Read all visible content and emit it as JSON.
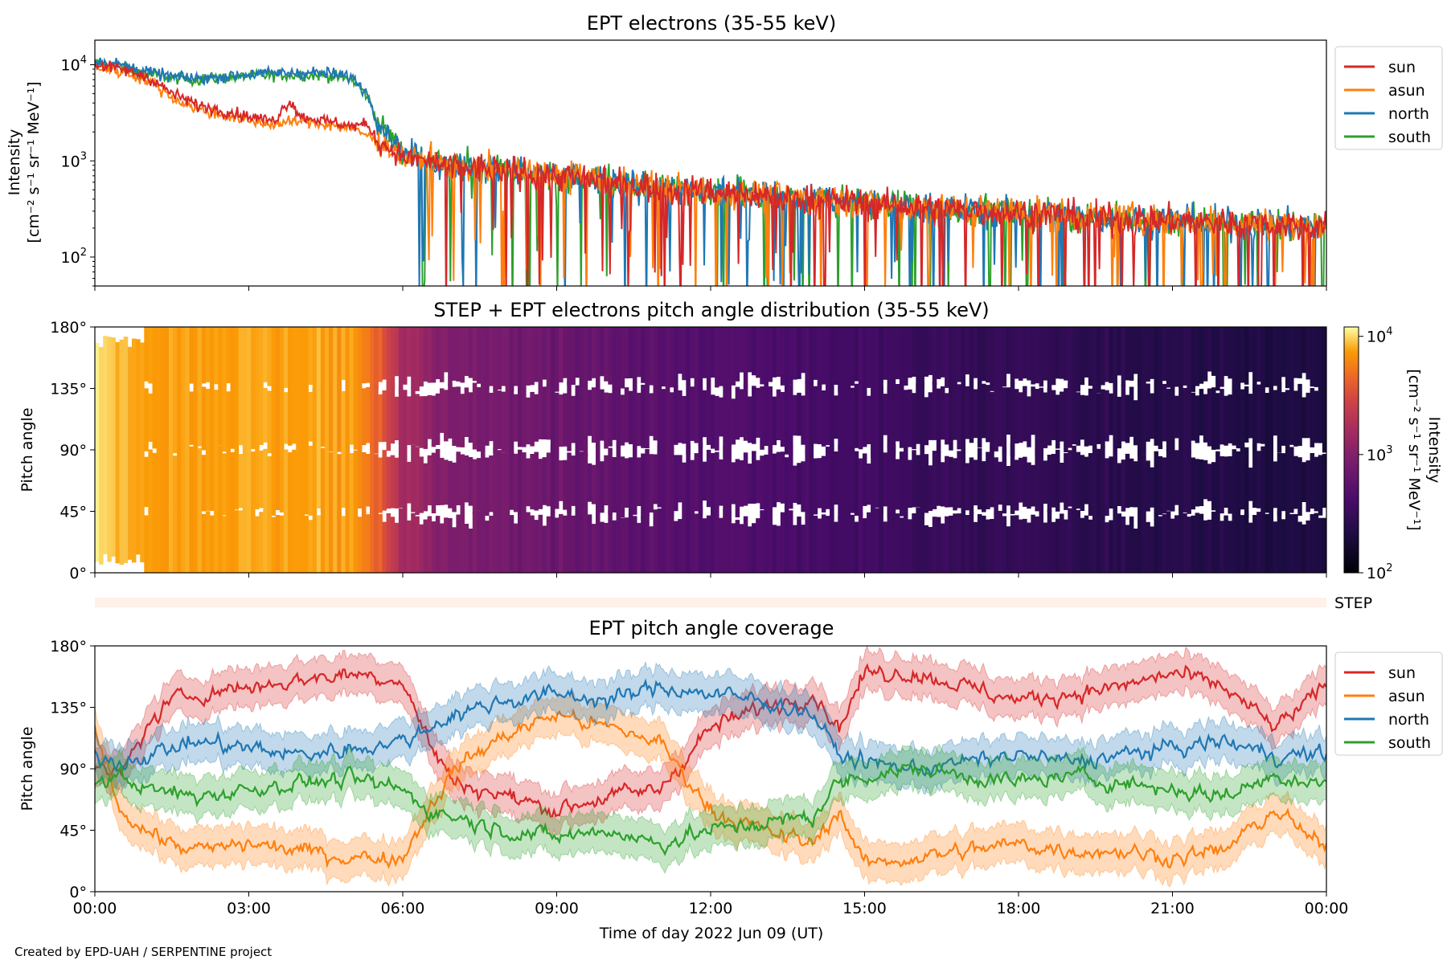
{
  "credit": "Created by EPD-UAH / SERPENTINE project",
  "colors": {
    "sun": "#d62728",
    "asun": "#ff7f0e",
    "north": "#1f77b4",
    "south": "#2ca02c",
    "step_bar": "#fff0ea"
  },
  "x_axis": {
    "label": "Time of day 2022 Jun 09 (UT)",
    "ticks": [
      "00:00",
      "03:00",
      "06:00",
      "09:00",
      "12:00",
      "15:00",
      "18:00",
      "21:00",
      "00:00"
    ],
    "range_hours": [
      0,
      24
    ]
  },
  "chart_data": [
    {
      "type": "line",
      "title": "EPT electrons (35-55 keV)",
      "ylabel_line1": "Intensity",
      "ylabel_line2": "[cm⁻² s⁻¹ sr⁻¹ MeV⁻¹]",
      "yscale": "log",
      "ylim": [
        50,
        18000
      ],
      "yticks": [
        {
          "value": 100,
          "base": "10",
          "exp": "2"
        },
        {
          "value": 1000,
          "base": "10",
          "exp": "3"
        },
        {
          "value": 10000,
          "base": "10",
          "exp": "4"
        }
      ],
      "legend": [
        "sun",
        "asun",
        "north",
        "south"
      ],
      "legend_position": "outside-top-right",
      "series": [
        {
          "name": "sun",
          "x": [
            0,
            0.5,
            1,
            1.5,
            2,
            2.5,
            3,
            3.5,
            3.8,
            4,
            4.5,
            5,
            5.3,
            5.5,
            6,
            7,
            8,
            9,
            10,
            11,
            12,
            13,
            14,
            15,
            16,
            17,
            18,
            19,
            20,
            21,
            22,
            23,
            24
          ],
          "y": [
            10000,
            9000,
            7500,
            5000,
            3800,
            3300,
            2900,
            2600,
            4200,
            2900,
            2600,
            2300,
            2400,
            1600,
            1100,
            850,
            800,
            700,
            600,
            520,
            480,
            440,
            400,
            370,
            330,
            310,
            290,
            270,
            250,
            240,
            230,
            220,
            210
          ]
        },
        {
          "name": "asun",
          "x": [
            0,
            0.5,
            1,
            1.5,
            2,
            2.5,
            3,
            3.5,
            4,
            4.5,
            5,
            5.5,
            6,
            7,
            8,
            9,
            10,
            11,
            12,
            13,
            14,
            15,
            16,
            17,
            18,
            19,
            20,
            21,
            22,
            23,
            24
          ],
          "y": [
            9500,
            8500,
            7000,
            4500,
            3400,
            3000,
            2600,
            2400,
            2600,
            2400,
            2200,
            1600,
            1100,
            850,
            800,
            700,
            600,
            520,
            480,
            440,
            400,
            370,
            330,
            310,
            290,
            270,
            250,
            240,
            230,
            220,
            210
          ]
        },
        {
          "name": "north",
          "x": [
            0,
            0.5,
            1,
            1.5,
            2,
            2.5,
            3,
            3.5,
            4,
            4.5,
            5,
            5.3,
            5.5,
            6,
            7,
            8,
            9,
            10,
            11,
            12,
            13,
            14,
            15,
            16,
            17,
            18,
            19,
            20,
            21,
            22,
            23,
            24
          ],
          "y": [
            11000,
            10000,
            8500,
            7500,
            7200,
            7500,
            8000,
            8200,
            8300,
            8200,
            7500,
            5000,
            2500,
            1200,
            900,
            800,
            700,
            600,
            520,
            480,
            440,
            400,
            370,
            330,
            310,
            290,
            270,
            250,
            240,
            230,
            220,
            210
          ]
        },
        {
          "name": "south",
          "x": [
            0,
            0.5,
            1,
            1.5,
            2,
            2.5,
            3,
            3.5,
            4,
            4.5,
            5,
            5.3,
            5.5,
            6,
            7,
            8,
            9,
            10,
            11,
            12,
            13,
            14,
            15,
            16,
            17,
            18,
            19,
            20,
            21,
            22,
            23,
            24
          ],
          "y": [
            10500,
            9500,
            8000,
            7300,
            7000,
            7300,
            7600,
            7800,
            7800,
            7700,
            7000,
            4800,
            2500,
            1200,
            900,
            800,
            700,
            600,
            520,
            480,
            440,
            400,
            370,
            330,
            310,
            290,
            270,
            250,
            240,
            230,
            220,
            210
          ]
        }
      ]
    },
    {
      "type": "heatmap",
      "title": "STEP + EPT electrons pitch angle distribution (35-55 keV)",
      "ylabel": "Pitch angle",
      "ylim": [
        0,
        180
      ],
      "yticks": [
        "0°",
        "45°",
        "90°",
        "135°",
        "180°"
      ],
      "colorbar_label": "Intensity",
      "colorbar_units": "[cm⁻² s⁻¹ sr⁻¹ MeV⁻¹]",
      "colorscale": "inferno",
      "color_range": [
        100,
        12000
      ],
      "colorbar_ticks": [
        {
          "value": 100,
          "base": "10",
          "exp": "2"
        },
        {
          "value": 1000,
          "base": "10",
          "exp": "3"
        },
        {
          "value": 10000,
          "base": "10",
          "exp": "4"
        }
      ],
      "intensity_profile": {
        "x_hours": [
          0,
          1,
          3,
          5,
          5.5,
          6,
          7,
          8,
          9,
          10,
          11,
          12,
          13,
          14,
          15,
          16,
          17,
          18,
          19,
          20,
          21,
          22,
          23,
          24
        ],
        "intensity": [
          10000,
          7500,
          7800,
          7500,
          4000,
          1500,
          900,
          800,
          700,
          600,
          520,
          480,
          440,
          400,
          370,
          330,
          310,
          290,
          270,
          250,
          240,
          230,
          220,
          210
        ]
      }
    },
    {
      "type": "bar",
      "label": "STEP"
    },
    {
      "type": "line",
      "title": "EPT pitch angle coverage",
      "ylabel": "Pitch angle",
      "ylim": [
        0,
        180
      ],
      "yticks": [
        "0°",
        "45°",
        "90°",
        "135°",
        "180°"
      ],
      "legend": [
        "sun",
        "asun",
        "north",
        "south"
      ],
      "legend_position": "outside-top-right",
      "series": [
        {
          "name": "sun",
          "x": [
            0,
            0.5,
            1,
            1.5,
            2,
            3,
            4,
            5,
            6,
            6.5,
            7,
            8,
            9,
            10,
            11,
            12,
            13,
            14,
            14.5,
            15,
            16,
            17,
            18,
            19,
            20,
            21,
            22,
            23,
            24
          ],
          "y": [
            90,
            85,
            120,
            140,
            145,
            150,
            155,
            160,
            155,
            110,
            80,
            70,
            60,
            70,
            75,
            120,
            135,
            145,
            120,
            160,
            160,
            150,
            140,
            145,
            150,
            160,
            150,
            120,
            150
          ]
        },
        {
          "name": "asun",
          "x": [
            0,
            0.5,
            1,
            1.5,
            2,
            3,
            4,
            5,
            6,
            6.5,
            7,
            8,
            9,
            10,
            11,
            12,
            13,
            14,
            14.5,
            15,
            16,
            17,
            18,
            19,
            20,
            21,
            22,
            23,
            24
          ],
          "y": [
            120,
            60,
            45,
            35,
            30,
            35,
            30,
            25,
            25,
            60,
            90,
            115,
            130,
            120,
            110,
            60,
            45,
            35,
            60,
            20,
            25,
            30,
            35,
            30,
            30,
            25,
            30,
            60,
            30
          ]
        },
        {
          "name": "north",
          "x": [
            0,
            0.5,
            1,
            1.5,
            2,
            3,
            4,
            5,
            6,
            6.5,
            7,
            8,
            9,
            10,
            11,
            12,
            13,
            14,
            14.5,
            15,
            16,
            17,
            18,
            19,
            20,
            21,
            22,
            23,
            24
          ],
          "y": [
            100,
            95,
            100,
            105,
            110,
            105,
            100,
            105,
            110,
            120,
            130,
            140,
            145,
            140,
            150,
            145,
            140,
            130,
            100,
            95,
            90,
            95,
            100,
            95,
            100,
            105,
            110,
            100,
            100
          ]
        },
        {
          "name": "south",
          "x": [
            0,
            0.5,
            1,
            1.5,
            2,
            3,
            4,
            5,
            6,
            6.5,
            7,
            8,
            9,
            10,
            11,
            12,
            13,
            14,
            14.5,
            15,
            16,
            17,
            18,
            19,
            20,
            21,
            22,
            23,
            24
          ],
          "y": [
            80,
            85,
            75,
            72,
            70,
            75,
            80,
            82,
            75,
            60,
            55,
            45,
            40,
            45,
            35,
            45,
            50,
            55,
            80,
            85,
            90,
            85,
            80,
            85,
            80,
            75,
            70,
            85,
            80
          ]
        }
      ]
    }
  ]
}
